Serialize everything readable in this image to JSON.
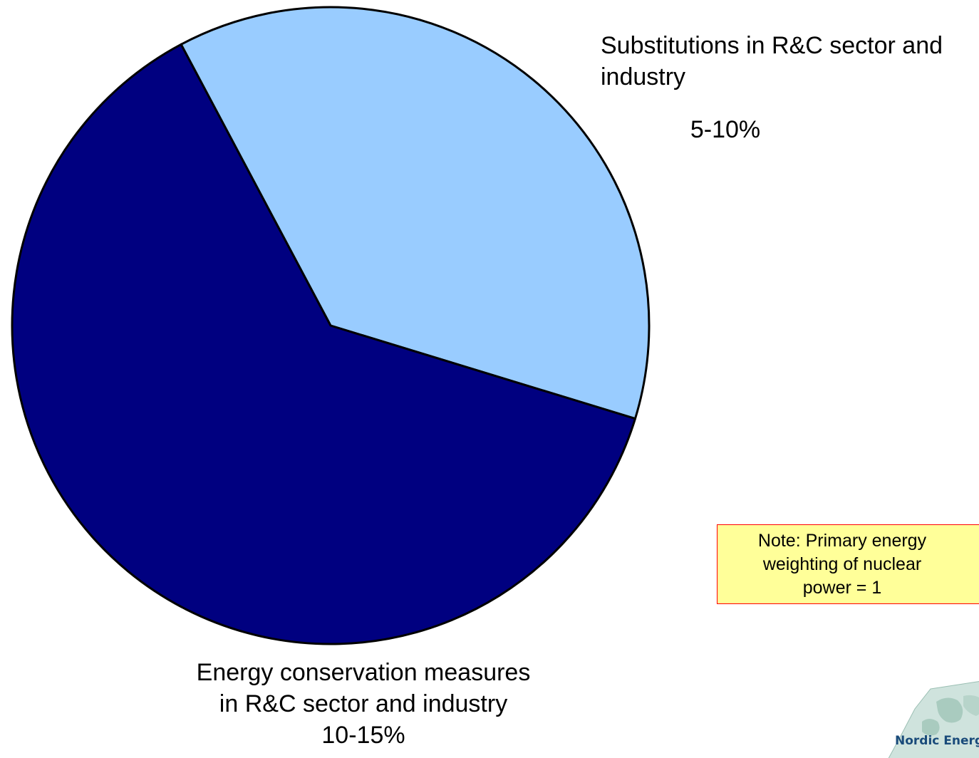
{
  "chart_data": {
    "type": "pie",
    "slices": [
      {
        "label": "Substitutions in R&C sector and industry",
        "value": 7.5,
        "value_label": "5-10%",
        "color": "#99ccff"
      },
      {
        "label": "Energy conservation measures in R&C sector and industry",
        "value": 12.5,
        "value_label": "10-15%",
        "color": "#000080"
      }
    ],
    "start_angle_deg": -28,
    "outline_color": "#000000"
  },
  "labels": {
    "substitutions": "Substitutions in R&C sector and industry",
    "substitutions_value": "5-10%",
    "conservation_line1": "Energy conservation measures",
    "conservation_line2": "in R&C sector and industry",
    "conservation_value": "10-15%"
  },
  "note": {
    "line1": "Note: Primary energy",
    "line2": "weighting of nuclear",
    "line3": "power = 1"
  },
  "logo": {
    "text": "Nordic Energy"
  }
}
